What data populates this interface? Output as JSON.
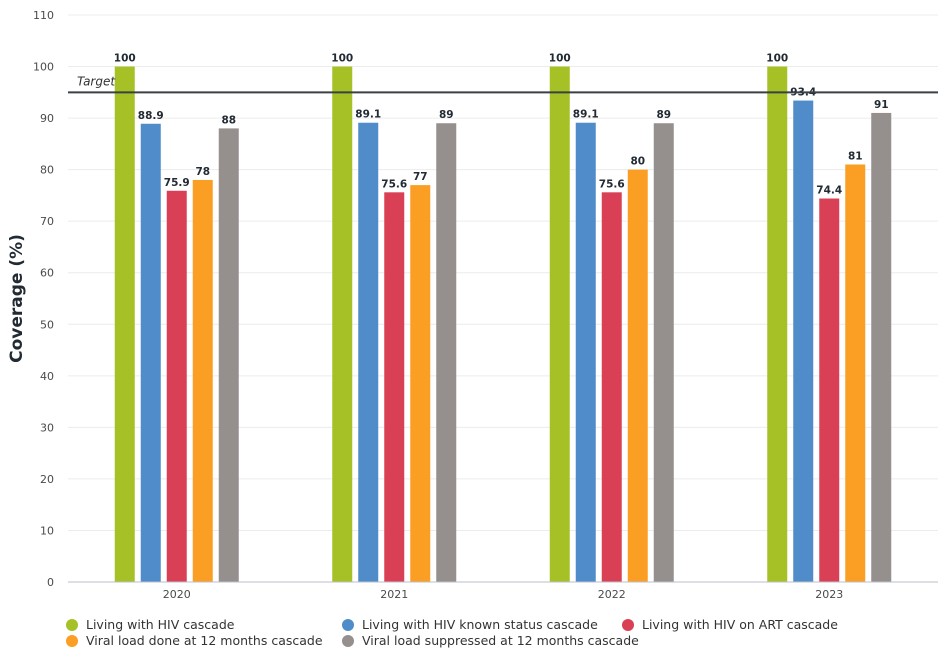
{
  "chart_data": {
    "type": "bar",
    "title": "",
    "xlabel": "",
    "ylabel": "Coverage (%)",
    "ylim": [
      0,
      110
    ],
    "yticks": [
      0,
      10,
      20,
      30,
      40,
      50,
      60,
      70,
      80,
      90,
      100,
      110
    ],
    "grid": true,
    "categories": [
      "2020",
      "2021",
      "2022",
      "2023"
    ],
    "series": [
      {
        "name": "Living with HIV cascade",
        "color": "#a5c125",
        "values": [
          100,
          100,
          100,
          100
        ],
        "labels": [
          "100",
          "100",
          "100",
          "100"
        ]
      },
      {
        "name": "Living with HIV known status cascade",
        "color": "#4f8cc9",
        "values": [
          88.9,
          89.1,
          89.1,
          93.4
        ],
        "labels": [
          "88.9",
          "89.1",
          "89.1",
          "93.4"
        ]
      },
      {
        "name": "Living with HIV on ART cascade",
        "color": "#d94055",
        "values": [
          75.9,
          75.6,
          75.6,
          74.4
        ],
        "labels": [
          "75.9",
          "75.6",
          "75.6",
          "74.4"
        ]
      },
      {
        "name": "Viral load done at 12 months cascade",
        "color": "#fa9f24",
        "values": [
          78,
          77,
          80,
          81
        ],
        "labels": [
          "78",
          "77",
          "80",
          "81"
        ]
      },
      {
        "name": "Viral load suppressed at 12 months cascade",
        "color": "#958f8e",
        "values": [
          88,
          89,
          89,
          91
        ],
        "labels": [
          "88",
          "89",
          "89",
          "91"
        ]
      }
    ],
    "target": {
      "label": "Target",
      "value": 95
    },
    "legend_position": "bottom"
  }
}
